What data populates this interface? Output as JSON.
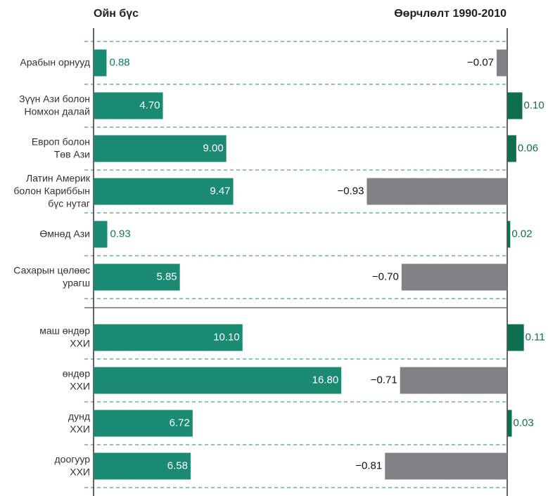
{
  "chart_data": {
    "type": "bar",
    "orientation": "horizontal",
    "categories": [
      [
        "Арабын орнууд"
      ],
      [
        "Зүүн Ази болон",
        "Номхон далай"
      ],
      [
        "Европ болон",
        "Төв Ази"
      ],
      [
        "Латин Америк",
        "болон Кариббын",
        "бүс нутаг"
      ],
      [
        "Өмнөд Ази"
      ],
      [
        "Сахарын цөлөөс",
        "урагш"
      ],
      [
        "маш өндөр",
        "ХХИ"
      ],
      [
        "өндөр",
        "ХХИ"
      ],
      [
        "дунд",
        "ХХИ"
      ],
      [
        "доогуур",
        "ХХИ"
      ]
    ],
    "series": [
      {
        "name": "Ойн бүс",
        "color": "#1b8a73",
        "label_color": "#17785e",
        "values": [
          0.88,
          4.7,
          9.0,
          9.47,
          0.93,
          5.85,
          10.1,
          16.8,
          6.72,
          6.58
        ],
        "value_labels": [
          "0.88",
          "4.70",
          "9.00",
          "9.47",
          "0.93",
          "5.85",
          "10.10",
          "16.80",
          "6.72",
          "6.58"
        ],
        "xlim": [
          0,
          28
        ]
      },
      {
        "name": "Өөрчлөлт 1990-2010",
        "color": "#0f6e4f",
        "negative_color": "#808285",
        "values": [
          -0.07,
          0.1,
          0.06,
          -0.93,
          0.02,
          -0.7,
          0.11,
          -0.71,
          0.03,
          -0.81
        ],
        "value_labels": [
          "−0.07",
          "0.10",
          "0.06",
          "−0.93",
          "0.02",
          "−0.70",
          "0.11",
          "−0.71",
          "0.03",
          "−0.81"
        ],
        "xlim": [
          -2.74,
          0.27
        ]
      }
    ]
  }
}
